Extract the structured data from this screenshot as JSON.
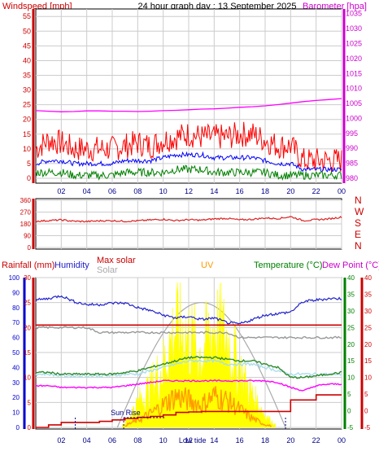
{
  "title": "24 hour graph day : 13 September 2025",
  "x_ticks": [
    "02",
    "04",
    "06",
    "08",
    "10",
    "12",
    "14",
    "16",
    "18",
    "20",
    "22",
    "00"
  ],
  "colors": {
    "wind": "#ff0000",
    "gust": "#ff0000",
    "wind_avg": "#0000ff",
    "wind_low": "#008000",
    "barometer": "#ff00ff",
    "direction": "#dd2222",
    "rainfall": "#cc0000",
    "humidity": "#2222cc",
    "solar": "#ffff00",
    "max_solar": "#aaaaaa",
    "uv": "#ff9900",
    "temperature": "#2e8b2e",
    "dewpoint": "#ff00ff",
    "feels": "#aaddee",
    "axis_blue": "#0000cc",
    "axis_green": "#008000",
    "axis_red": "#cc0000"
  },
  "chart_data": [
    {
      "type": "line",
      "name": "wind-barometer",
      "ylabel_left": "Windspeed [mph]",
      "ylabel_right": "Barometer [hpa]",
      "ylim_left": [
        0,
        57
      ],
      "ylim_right": [
        980,
        1036
      ],
      "ticks_left": [
        "0",
        "5",
        "10",
        "15",
        "20",
        "25",
        "30",
        "35",
        "40",
        "45",
        "50",
        "55"
      ],
      "ticks_right": [
        "980",
        "985",
        "990",
        "995",
        "1000",
        "1005",
        "1010",
        "1015",
        "1020",
        "1025",
        "1030",
        "1035"
      ],
      "x": [
        0,
        1,
        2,
        3,
        4,
        5,
        6,
        7,
        8,
        9,
        10,
        11,
        12,
        13,
        14,
        15,
        16,
        17,
        18,
        19,
        20,
        21,
        22,
        23,
        24
      ],
      "series": [
        {
          "key": "gust",
          "values": [
            10,
            13,
            12,
            10,
            10,
            10,
            10,
            11,
            12,
            11,
            13,
            14,
            15,
            14,
            14,
            14,
            15,
            15,
            13,
            11,
            11,
            6,
            6,
            6,
            6
          ]
        },
        {
          "key": "avg",
          "values": [
            5,
            6,
            6,
            5,
            5,
            5,
            5,
            6,
            6,
            6,
            7,
            8,
            8,
            8,
            7,
            7,
            7,
            7,
            6,
            5,
            5,
            3,
            3,
            3,
            3
          ]
        },
        {
          "key": "low",
          "values": [
            2,
            2,
            2,
            1,
            1,
            1,
            1,
            2,
            2,
            2,
            2,
            3,
            3,
            3,
            2,
            2,
            2,
            2,
            2,
            1,
            1,
            1,
            1,
            1,
            1
          ]
        },
        {
          "key": "barometer",
          "values": [
            1002.6,
            1002.4,
            1002.2,
            1002.3,
            1002.5,
            1002.5,
            1002.4,
            1002.4,
            1002.3,
            1002.4,
            1002.6,
            1002.7,
            1002.9,
            1003.1,
            1003.2,
            1003.4,
            1003.7,
            1003.9,
            1004.2,
            1004.6,
            1005.1,
            1005.6,
            1006.0,
            1006.3,
            1006.6
          ]
        }
      ]
    },
    {
      "type": "line",
      "name": "wind-direction",
      "ylabel_right": [
        "N",
        "W",
        "S",
        "E",
        "N"
      ],
      "ylim": [
        0,
        360
      ],
      "ticks_left": [
        "0",
        "90",
        "180",
        "270",
        "360"
      ],
      "x": [
        0,
        1,
        2,
        3,
        4,
        5,
        6,
        7,
        8,
        9,
        10,
        11,
        12,
        13,
        14,
        15,
        16,
        17,
        18,
        19,
        20,
        21,
        22,
        23,
        24
      ],
      "values": [
        200,
        205,
        210,
        200,
        198,
        203,
        205,
        200,
        203,
        210,
        215,
        205,
        212,
        208,
        218,
        222,
        210,
        215,
        225,
        220,
        235,
        205,
        212,
        218,
        232
      ]
    },
    {
      "type": "line",
      "name": "rain-humidity-temperature",
      "labels": {
        "rainfall": "Rainfall (mm)",
        "humidity": "Humidity",
        "max_solar": "Max solar",
        "solar": "Solar",
        "uv": "UV",
        "temperature": "Temperature (°C)",
        "dewpoint": "Dew Point (°C)",
        "sunrise": "Sun Rise",
        "low_tide": "Low tide"
      },
      "ylim_humidity": [
        0,
        100
      ],
      "ylim_rain": [
        0,
        30
      ],
      "ylim_temp": [
        -5,
        40
      ],
      "ticks_humidity": [
        "0",
        "10",
        "20",
        "30",
        "40",
        "50",
        "60",
        "70",
        "80",
        "90",
        "100"
      ],
      "ticks_rain": [
        "0",
        "5",
        "10",
        "15",
        "20",
        "25",
        "30"
      ],
      "ticks_temp": [
        "-5",
        "0",
        "5",
        "10",
        "15",
        "20",
        "25",
        "30",
        "35",
        "40"
      ],
      "ticks_dew": [
        "-5",
        "0",
        "5",
        "10",
        "15",
        "20",
        "25",
        "30",
        "35",
        "40"
      ],
      "x": [
        0,
        1,
        2,
        3,
        4,
        5,
        6,
        7,
        8,
        9,
        10,
        11,
        12,
        13,
        14,
        15,
        16,
        17,
        18,
        19,
        20,
        21,
        22,
        23,
        24
      ],
      "series": [
        {
          "key": "humidity",
          "values": [
            85,
            86,
            88,
            84,
            82,
            82,
            83,
            83,
            80,
            78,
            75,
            73,
            74,
            72,
            73,
            70,
            69,
            72,
            75,
            76,
            77,
            84,
            85,
            86,
            86
          ]
        },
        {
          "key": "max_solar",
          "values": [
            20,
            20,
            20,
            20,
            20,
            19,
            19,
            19,
            19,
            19,
            19,
            19,
            19,
            19,
            19,
            19,
            18,
            18,
            18,
            18,
            18,
            18,
            18,
            18,
            18
          ]
        },
        {
          "key": "rain_rate",
          "values": [
            20.5,
            20.5,
            20.5,
            20.5,
            20.5,
            20.5,
            20.5,
            20.5,
            20.5,
            20.5,
            20.5,
            20.5,
            20.5,
            20.5,
            20.5,
            20.5,
            20.5,
            20.5,
            20.5,
            20.5,
            20.5,
            20.5,
            20.5,
            20.5,
            20.5
          ]
        },
        {
          "key": "feels",
          "values": [
            11,
            11,
            10.5,
            10.5,
            10.5,
            10.5,
            10.5,
            11,
            11,
            12,
            13,
            14,
            15,
            15,
            15,
            14,
            14,
            14,
            13,
            12,
            11,
            11,
            11,
            11,
            11
          ]
        },
        {
          "key": "temperature",
          "values": [
            11.5,
            11.5,
            11,
            11,
            11,
            11,
            11,
            11.5,
            12,
            13,
            14,
            15,
            16,
            16,
            16,
            15.5,
            15,
            15,
            14,
            13,
            10,
            10,
            10.5,
            11,
            11.5
          ]
        },
        {
          "key": "dewpoint",
          "values": [
            7.5,
            7.5,
            7,
            7,
            7,
            7,
            7,
            7.5,
            8,
            8.5,
            9,
            9,
            9,
            9,
            9,
            9,
            9,
            9,
            9,
            8.5,
            7,
            6,
            7.5,
            8,
            8
          ]
        },
        {
          "key": "solar",
          "values": [
            0,
            0,
            0,
            0,
            0,
            0,
            0,
            1,
            6,
            10,
            15,
            25,
            22,
            18,
            25,
            22,
            14,
            8,
            3,
            0,
            0,
            0,
            0,
            0,
            0
          ]
        },
        {
          "key": "uv",
          "values": [
            0,
            0,
            0,
            0,
            0,
            0,
            0,
            0.2,
            0.8,
            1.5,
            2.5,
            3.5,
            3,
            2.5,
            3.5,
            3,
            2,
            1,
            0.3,
            0,
            0,
            0,
            0,
            0,
            0
          ]
        },
        {
          "key": "rain_total",
          "values": [
            0,
            0.5,
            1,
            1,
            1,
            1.2,
            1.5,
            1.8,
            2,
            2.2,
            2.5,
            3,
            3.1,
            3.2,
            3.2,
            3.2,
            3.2,
            3.2,
            3.2,
            3.2,
            5.5,
            5.5,
            6.5,
            6.5,
            6.5
          ]
        }
      ]
    }
  ]
}
